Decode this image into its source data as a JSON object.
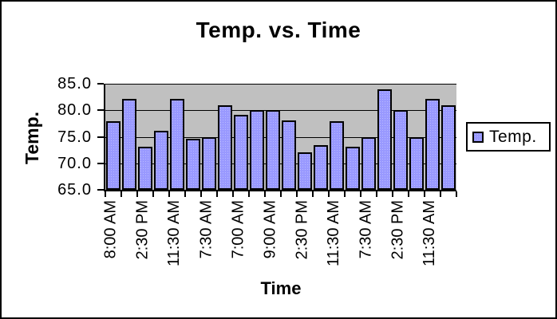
{
  "chart_data": {
    "type": "bar",
    "title": "Temp. vs. Time",
    "xlabel": "Time",
    "ylabel": "Temp.",
    "legend": {
      "label": "Temp.",
      "position": "right"
    },
    "ylim": [
      65.0,
      85.0
    ],
    "ytick_values": [
      85.0,
      80.0,
      75.0,
      70.0,
      65.0
    ],
    "ytick_labels": [
      "85.0",
      "80.0",
      "75.0",
      "70.0",
      "65.0"
    ],
    "x_tick_labels": [
      "8:00 AM",
      "2:30 PM",
      "11:30 AM",
      "7:30 AM",
      "7:00 AM",
      "9:00 AM",
      "2:30 PM",
      "11:30 AM",
      "7:30 AM",
      "2:30 PM",
      "11:30 AM"
    ],
    "x_label_interval": 2,
    "grid": true,
    "series": [
      {
        "name": "Temp.",
        "values": [
          78.0,
          82.2,
          73.1,
          76.1,
          82.1,
          74.6,
          75.0,
          81.0,
          79.1,
          80.0,
          80.0,
          78.1,
          72.0,
          73.4,
          78.0,
          73.1,
          75.0,
          84.0,
          80.0,
          75.0,
          82.1,
          80.9
        ]
      }
    ],
    "colors": {
      "bar_fill": "#9999ff",
      "bar_border": "#000000",
      "plot_bg": "#c0c0c0",
      "chart_bg": "#ffffff",
      "text": "#000000"
    }
  }
}
